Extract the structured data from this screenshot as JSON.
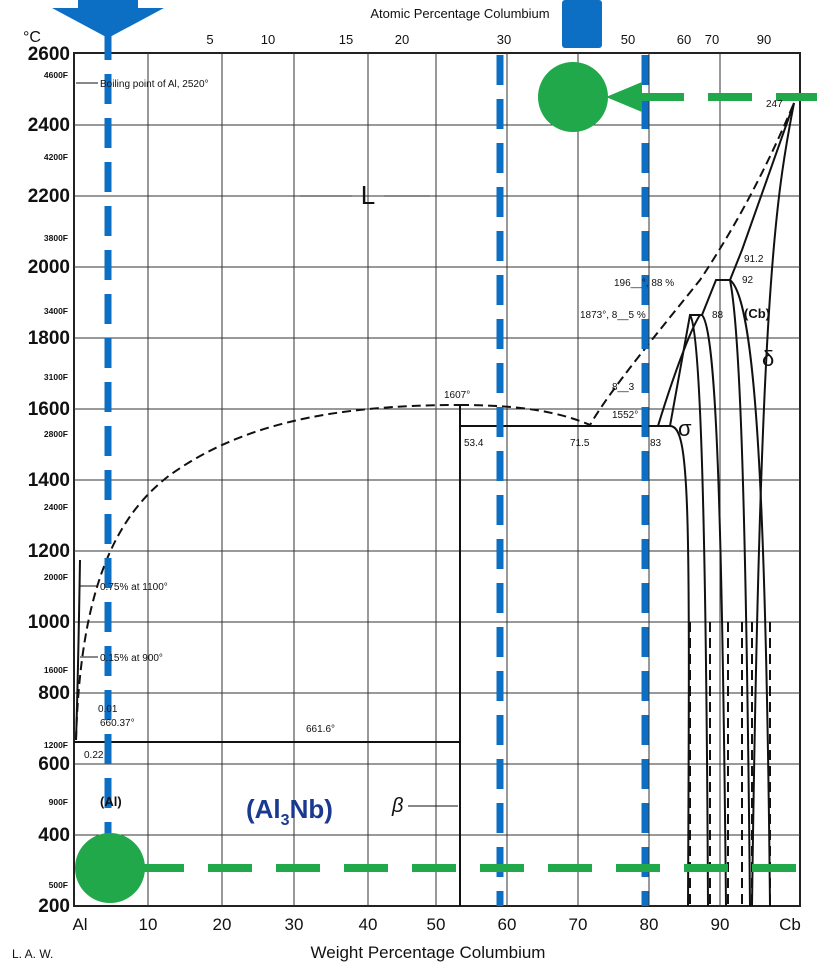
{
  "top_axis_title": "Atomic Percentage Columbium",
  "bottom_axis_title": "Weight Percentage Columbium",
  "y_unit": "°C",
  "author": "L. A. W.",
  "y_ticks": [
    "2600",
    "2400",
    "2200",
    "2000",
    "1800",
    "1600",
    "1400",
    "1200",
    "1000",
    "800",
    "600",
    "400",
    "200"
  ],
  "f_ticks": [
    "4600F",
    "4200F",
    "3800F",
    "3400F",
    "3100F",
    "2800F",
    "2400F",
    "2000F",
    "1600F",
    "1200F",
    "900F",
    "500F"
  ],
  "x_ticks": [
    "Al",
    "10",
    "20",
    "30",
    "40",
    "50",
    "60",
    "70",
    "80",
    "90",
    "Cb"
  ],
  "top_ticks": [
    "5",
    "10",
    "15",
    "20",
    "30",
    "50",
    "60",
    "70",
    "90"
  ],
  "labels": {
    "boiling": "Boiling point of Al, 2520°",
    "liquid": "L",
    "t2470": "247",
    "t912": "91.2",
    "t92": "92",
    "t1960": "196__°, 88 %",
    "t1873": "1873°, 8__5 %",
    "t88": "88",
    "cb_phase": "(Cb)",
    "delta": "δ",
    "t813": "8__3",
    "t1607": "1607°",
    "t1552": "1552°",
    "sigma": "σ",
    "c534": "53.4",
    "c715": "71.5",
    "c83": "83",
    "sol1100": "0.75% at 1100°",
    "sol900": "0.15% at 900°",
    "c001": "0.01",
    "t66037": "660.37°",
    "t6616": "661.6°",
    "c022": "0.22",
    "al_phase": "(Al)",
    "al3nb": "(Al",
    "al3nb_sub": "3",
    "al3nb_end": "Nb)",
    "beta": "β"
  },
  "colors": {
    "blue": "#0d6fc4",
    "green": "#21a84a",
    "ink": "#111111"
  }
}
